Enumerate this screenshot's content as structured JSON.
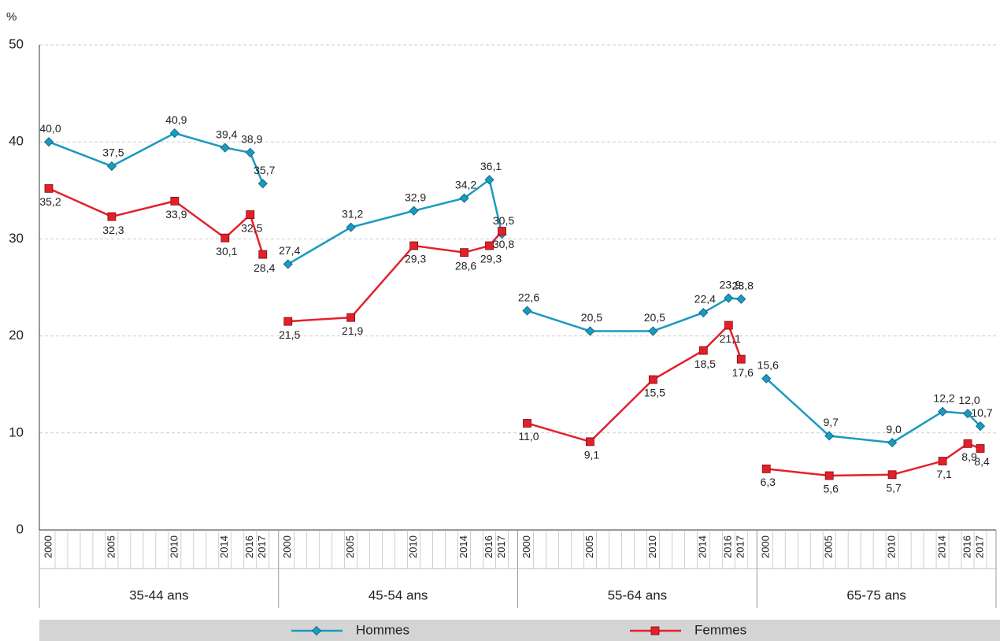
{
  "chart_data": {
    "type": "line",
    "y_unit": "%",
    "groups": [
      "35-44 ans",
      "45-54 ans",
      "55-64 ans",
      "65-75 ans"
    ],
    "x": [
      2000,
      2005,
      2010,
      2014,
      2016,
      2017
    ],
    "ylim": [
      0,
      50
    ],
    "yticks": [
      0,
      10,
      20,
      30,
      40,
      50
    ],
    "grid": true,
    "series": [
      {
        "name": "Hommes",
        "color": "#1a9ac0",
        "marker": "diamond",
        "values": [
          [
            40.0,
            37.5,
            40.9,
            39.4,
            38.9,
            35.7
          ],
          [
            27.4,
            31.2,
            32.9,
            34.2,
            36.1,
            30.5
          ],
          [
            22.6,
            20.5,
            20.5,
            22.4,
            23.9,
            23.8
          ],
          [
            15.6,
            9.7,
            9.0,
            12.2,
            12.0,
            10.7
          ]
        ],
        "value_labels": [
          [
            "40,0",
            "37,5",
            "40,9",
            "39,4",
            "38,9",
            "35,7"
          ],
          [
            "27,4",
            "31,2",
            "32,9",
            "34,2",
            "36,1",
            "30,5"
          ],
          [
            "22,6",
            "20,5",
            "20,5",
            "22,4",
            "23,9",
            "23,8"
          ],
          [
            "15,6",
            "9,7",
            "9,0",
            "12,2",
            "12,0",
            "10,7"
          ]
        ]
      },
      {
        "name": "Femmes",
        "color": "#e3202a",
        "marker": "square",
        "values": [
          [
            35.2,
            32.3,
            33.9,
            30.1,
            32.5,
            28.4
          ],
          [
            21.5,
            21.9,
            29.3,
            28.6,
            29.3,
            30.8
          ],
          [
            11.0,
            9.1,
            15.5,
            18.5,
            21.1,
            17.6
          ],
          [
            6.3,
            5.6,
            5.7,
            7.1,
            8.9,
            8.4
          ]
        ],
        "value_labels": [
          [
            "35,2",
            "32,3",
            "33,9",
            "30,1",
            "32,5",
            "28,4"
          ],
          [
            "21,5",
            "21,9",
            "29,3",
            "28,6",
            "29,3",
            "30,8"
          ],
          [
            "11,0",
            "9,1",
            "15,5",
            "18,5",
            "21,1",
            "17,6"
          ],
          [
            "6,3",
            "5,6",
            "5,7",
            "7,1",
            "8,9",
            "8,4"
          ]
        ]
      }
    ]
  }
}
